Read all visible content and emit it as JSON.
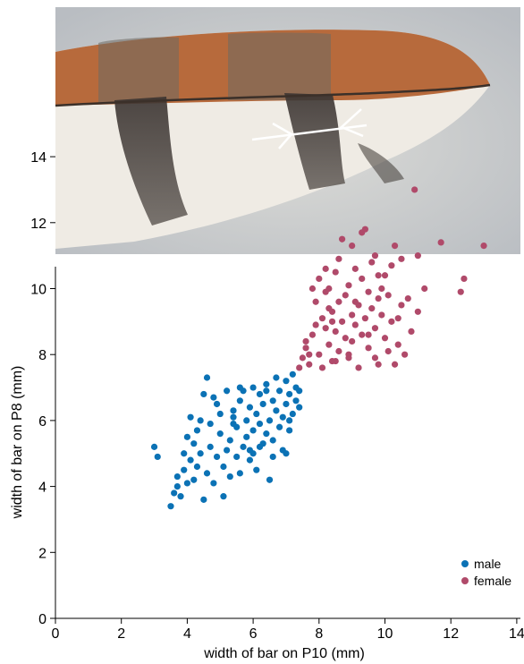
{
  "chart_data": {
    "type": "scatter",
    "title": "",
    "xlabel": "width of bar on P10 (mm)",
    "ylabel": "width of bar on P8 (mm)",
    "xlim": [
      0,
      14.5
    ],
    "ylim": [
      0,
      14.5
    ],
    "xticks": [
      0,
      2,
      4,
      6,
      8,
      10,
      12,
      14
    ],
    "yticks": [
      0,
      2,
      4,
      6,
      8,
      10,
      12,
      14
    ],
    "grid": false,
    "legend_position": "bottom-right",
    "series": [
      {
        "name": "male",
        "color": "#0b72b5",
        "points": [
          [
            3.0,
            5.2
          ],
          [
            3.1,
            4.9
          ],
          [
            3.5,
            3.4
          ],
          [
            3.6,
            3.8
          ],
          [
            3.7,
            4.0
          ],
          [
            3.7,
            4.3
          ],
          [
            3.8,
            3.7
          ],
          [
            3.9,
            4.5
          ],
          [
            3.9,
            5.0
          ],
          [
            4.0,
            5.5
          ],
          [
            4.0,
            4.1
          ],
          [
            4.1,
            4.8
          ],
          [
            4.1,
            6.1
          ],
          [
            4.2,
            5.3
          ],
          [
            4.2,
            4.2
          ],
          [
            4.3,
            5.7
          ],
          [
            4.3,
            4.6
          ],
          [
            4.4,
            6.0
          ],
          [
            4.4,
            5.0
          ],
          [
            4.5,
            3.6
          ],
          [
            4.5,
            6.8
          ],
          [
            4.6,
            4.4
          ],
          [
            4.6,
            7.3
          ],
          [
            4.7,
            5.2
          ],
          [
            4.7,
            5.9
          ],
          [
            4.8,
            4.1
          ],
          [
            4.9,
            6.5
          ],
          [
            4.9,
            4.9
          ],
          [
            5.0,
            5.6
          ],
          [
            5.0,
            6.2
          ],
          [
            5.1,
            3.7
          ],
          [
            5.1,
            4.6
          ],
          [
            5.2,
            5.1
          ],
          [
            5.2,
            6.9
          ],
          [
            5.3,
            5.4
          ],
          [
            5.3,
            4.3
          ],
          [
            5.4,
            6.3
          ],
          [
            5.4,
            6.1
          ],
          [
            5.5,
            4.9
          ],
          [
            5.5,
            5.8
          ],
          [
            5.6,
            6.6
          ],
          [
            5.6,
            4.4
          ],
          [
            5.7,
            5.2
          ],
          [
            5.7,
            6.9
          ],
          [
            5.8,
            6.0
          ],
          [
            5.8,
            5.5
          ],
          [
            5.9,
            4.8
          ],
          [
            5.9,
            6.4
          ],
          [
            6.0,
            5.7
          ],
          [
            6.0,
            7.0
          ],
          [
            6.0,
            5.0
          ],
          [
            6.1,
            6.2
          ],
          [
            6.1,
            4.5
          ],
          [
            6.2,
            5.9
          ],
          [
            6.2,
            6.8
          ],
          [
            6.3,
            5.3
          ],
          [
            6.3,
            6.5
          ],
          [
            6.4,
            7.1
          ],
          [
            6.4,
            5.6
          ],
          [
            6.5,
            4.2
          ],
          [
            6.5,
            6.0
          ],
          [
            6.6,
            6.6
          ],
          [
            6.6,
            5.4
          ],
          [
            6.7,
            7.3
          ],
          [
            6.7,
            6.3
          ],
          [
            6.8,
            5.8
          ],
          [
            6.8,
            6.9
          ],
          [
            6.9,
            6.1
          ],
          [
            6.9,
            5.1
          ],
          [
            7.0,
            6.5
          ],
          [
            7.0,
            7.2
          ],
          [
            7.1,
            6.8
          ],
          [
            7.1,
            5.7
          ],
          [
            7.2,
            7.4
          ],
          [
            7.2,
            6.2
          ],
          [
            7.3,
            6.6
          ],
          [
            7.3,
            7.0
          ],
          [
            7.4,
            6.4
          ],
          [
            7.4,
            6.9
          ],
          [
            7.1,
            6.0
          ],
          [
            6.2,
            5.2
          ],
          [
            5.9,
            5.1
          ],
          [
            5.4,
            5.9
          ],
          [
            4.8,
            6.7
          ],
          [
            6.6,
            4.9
          ],
          [
            7.0,
            5.0
          ],
          [
            6.4,
            6.9
          ],
          [
            5.6,
            7.0
          ]
        ]
      },
      {
        "name": "female",
        "color": "#b04a6a",
        "points": [
          [
            7.4,
            7.6
          ],
          [
            7.5,
            7.9
          ],
          [
            7.6,
            8.2
          ],
          [
            7.7,
            7.7
          ],
          [
            7.8,
            8.6
          ],
          [
            7.9,
            9.6
          ],
          [
            8.0,
            8.0
          ],
          [
            8.0,
            10.3
          ],
          [
            8.1,
            9.1
          ],
          [
            8.1,
            7.6
          ],
          [
            8.2,
            8.8
          ],
          [
            8.2,
            9.9
          ],
          [
            8.3,
            8.3
          ],
          [
            8.3,
            10.0
          ],
          [
            8.4,
            9.3
          ],
          [
            8.4,
            7.8
          ],
          [
            8.5,
            8.7
          ],
          [
            8.5,
            10.5
          ],
          [
            8.6,
            9.6
          ],
          [
            8.6,
            8.1
          ],
          [
            8.7,
            9.0
          ],
          [
            8.7,
            11.5
          ],
          [
            8.8,
            8.5
          ],
          [
            8.8,
            9.8
          ],
          [
            8.9,
            7.9
          ],
          [
            8.9,
            10.1
          ],
          [
            9.0,
            9.2
          ],
          [
            9.0,
            8.4
          ],
          [
            9.1,
            10.6
          ],
          [
            9.1,
            8.9
          ],
          [
            9.2,
            9.5
          ],
          [
            9.2,
            7.6
          ],
          [
            9.3,
            10.3
          ],
          [
            9.3,
            8.6
          ],
          [
            9.4,
            11.8
          ],
          [
            9.4,
            9.1
          ],
          [
            9.5,
            9.9
          ],
          [
            9.5,
            8.2
          ],
          [
            9.6,
            10.8
          ],
          [
            9.6,
            9.4
          ],
          [
            9.7,
            8.8
          ],
          [
            9.7,
            11.0
          ],
          [
            9.8,
            9.7
          ],
          [
            9.8,
            7.7
          ],
          [
            9.9,
            10.0
          ],
          [
            9.9,
            9.2
          ],
          [
            10.0,
            8.5
          ],
          [
            10.0,
            10.4
          ],
          [
            10.1,
            9.8
          ],
          [
            10.2,
            9.0
          ],
          [
            10.3,
            11.3
          ],
          [
            10.3,
            7.7
          ],
          [
            10.4,
            8.3
          ],
          [
            10.5,
            10.9
          ],
          [
            10.5,
            9.5
          ],
          [
            10.6,
            8.0
          ],
          [
            10.7,
            9.7
          ],
          [
            10.8,
            8.7
          ],
          [
            10.9,
            13.0
          ],
          [
            11.0,
            11.0
          ],
          [
            11.0,
            9.3
          ],
          [
            11.2,
            10.0
          ],
          [
            11.7,
            11.4
          ],
          [
            12.3,
            9.9
          ],
          [
            12.4,
            10.3
          ],
          [
            13.0,
            11.3
          ],
          [
            9.3,
            11.7
          ],
          [
            8.6,
            10.9
          ],
          [
            7.9,
            8.9
          ],
          [
            7.6,
            8.4
          ],
          [
            8.4,
            9.0
          ],
          [
            9.1,
            9.6
          ],
          [
            9.8,
            10.4
          ],
          [
            10.1,
            8.1
          ],
          [
            8.2,
            10.6
          ],
          [
            8.9,
            8.0
          ],
          [
            7.8,
            10.0
          ],
          [
            9.5,
            8.6
          ],
          [
            10.4,
            9.1
          ],
          [
            8.5,
            7.8
          ],
          [
            9.7,
            7.9
          ],
          [
            10.2,
            10.7
          ],
          [
            9.0,
            11.3
          ],
          [
            8.3,
            9.4
          ],
          [
            7.7,
            8.0
          ]
        ]
      }
    ]
  }
}
